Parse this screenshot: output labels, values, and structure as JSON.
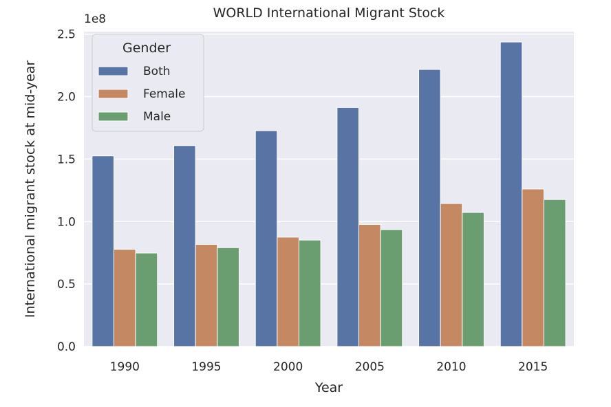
{
  "chart_data": {
    "type": "bar",
    "title": "WORLD International Migrant Stock",
    "xlabel": "Year",
    "ylabel": "International migrant stock at mid-year",
    "offset_label": "1e8",
    "categories": [
      "1990",
      "1995",
      "2000",
      "2005",
      "2010",
      "2015"
    ],
    "series": [
      {
        "name": "Both",
        "color": "#5874a5",
        "values": [
          152563212,
          160801752,
          172703309,
          191269100,
          221714243,
          243700236
        ]
      },
      {
        "name": "Female",
        "color": "#c48863",
        "values": [
          77745854,
          81686536,
          87519349,
          97694591,
          114434047,
          126046508
        ]
      },
      {
        "name": "Male",
        "color": "#6a9e71",
        "values": [
          74817358,
          79115216,
          85183960,
          93574509,
          107280196,
          117653728
        ]
      }
    ],
    "ylim": [
      0,
      252000000
    ],
    "yticks": [
      0,
      50000000,
      100000000,
      150000000,
      200000000,
      250000000
    ],
    "ytick_labels": [
      "0.0",
      "0.5",
      "1.0",
      "1.5",
      "2.0",
      "2.5"
    ],
    "legend": {
      "title": "Gender",
      "placement": "top-left"
    },
    "grid": true,
    "background": "#eaeaf2"
  }
}
